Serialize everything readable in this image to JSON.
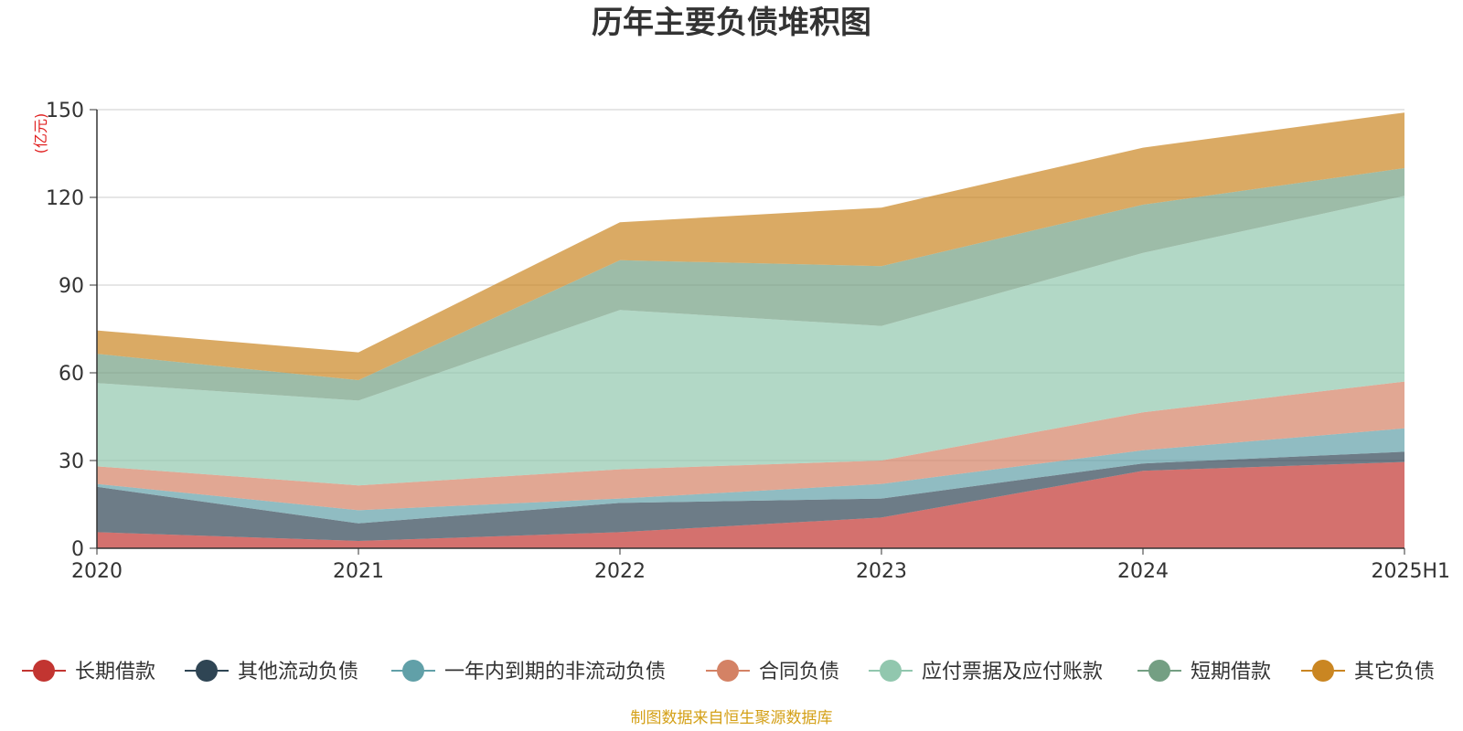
{
  "chart_data": {
    "type": "area",
    "title": "历年主要负债堆积图",
    "unit_label": "(亿元)",
    "source_note": "制图数据来自恒生聚源数据库",
    "categories": [
      "2020",
      "2021",
      "2022",
      "2023",
      "2024",
      "2025H1"
    ],
    "ylim": [
      0,
      150
    ],
    "yticks": [
      "0",
      "30",
      "60",
      "90",
      "120",
      "150"
    ],
    "grid": true,
    "legend_position": "bottom",
    "stacked": true,
    "series": [
      {
        "name": "长期借款",
        "color": "#c23531",
        "values": [
          5.5,
          2.5,
          5.5,
          10.5,
          26.5,
          29.5
        ]
      },
      {
        "name": "其他流动负债",
        "color": "#2f4554",
        "values": [
          15.5,
          6.0,
          10.0,
          6.5,
          2.5,
          3.5
        ]
      },
      {
        "name": "一年内到期的非流动负债",
        "color": "#61a0a8",
        "values": [
          1.0,
          4.5,
          1.5,
          5.0,
          4.5,
          8.0
        ]
      },
      {
        "name": "合同负债",
        "color": "#d48265",
        "values": [
          6.0,
          8.5,
          10.0,
          8.0,
          13.0,
          16.0
        ]
      },
      {
        "name": "应付票据及应付账款",
        "color": "#91c7ae",
        "values": [
          28.5,
          29.0,
          54.5,
          46.0,
          54.5,
          63.5
        ]
      },
      {
        "name": "短期借款",
        "color": "#749f83",
        "values": [
          10.0,
          7.0,
          17.0,
          20.5,
          16.5,
          9.5
        ]
      },
      {
        "name": "其它负债",
        "color": "#ca8622",
        "values": [
          8.0,
          9.5,
          13.0,
          20.0,
          19.5,
          19.0
        ]
      }
    ]
  }
}
